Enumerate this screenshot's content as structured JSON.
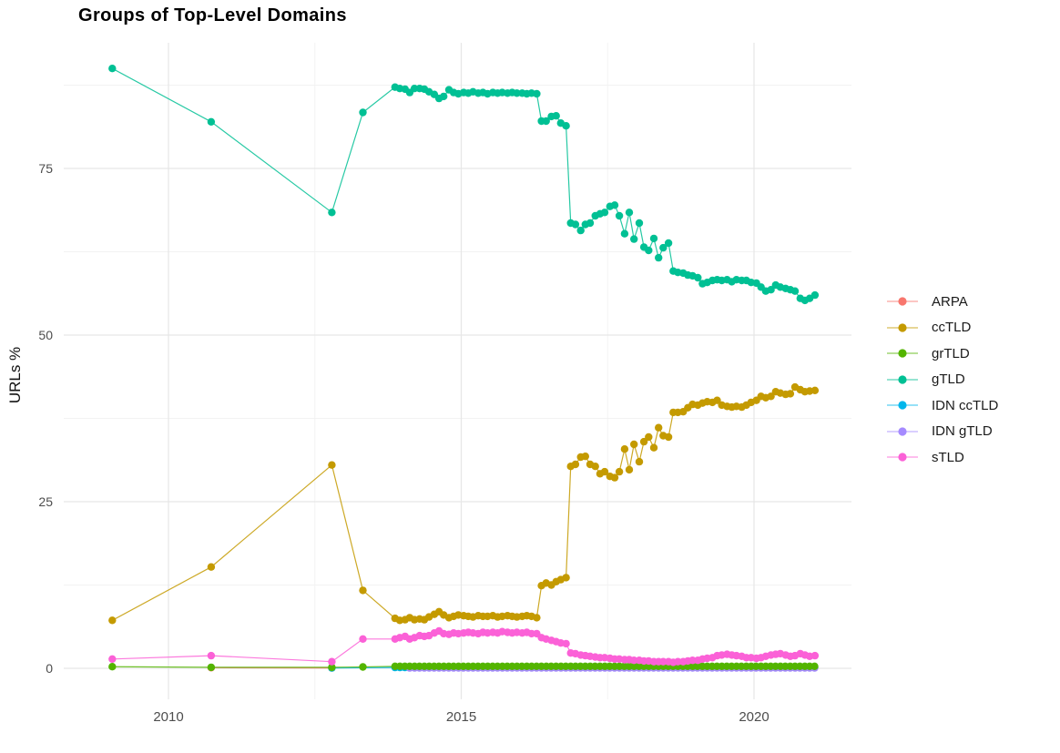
{
  "title": "Groups of Top-Level Domains",
  "chart_data": {
    "type": "line-scatter",
    "title": "Groups of Top-Level Domains",
    "xlabel": "",
    "ylabel": "URLs %",
    "x_ticks": [
      2010,
      2015,
      2020
    ],
    "x_tick_labels": [
      "2010",
      "2015",
      "2020"
    ],
    "x_minor_ticks": [
      2012.5,
      2017.5
    ],
    "y_ticks": [
      0,
      25,
      50,
      75
    ],
    "y_tick_labels": [
      "0",
      "25",
      "50",
      "75"
    ],
    "y_minor_ticks": [
      12.5,
      37.5,
      62.5,
      87.5
    ],
    "xlim": [
      2008.2,
      2021.7
    ],
    "ylim": [
      -4.6,
      93.9
    ],
    "grid": true,
    "legend_position": "right",
    "draw_order": [
      0,
      1,
      3,
      4,
      5,
      2,
      6
    ],
    "series": [
      {
        "name": "ARPA",
        "color": "#F8766D",
        "points": [
          [
            2010.73,
            0.1
          ],
          [
            2012.79,
            0.05
          ]
        ]
      },
      {
        "name": "ccTLD",
        "color": "#C49A00",
        "points": [
          [
            2009.04,
            7.2
          ],
          [
            2010.73,
            15.2
          ],
          [
            2012.79,
            30.5
          ],
          [
            2013.32,
            11.7
          ],
          [
            2013.87,
            7.5
          ],
          [
            2013.95,
            7.2
          ],
          [
            2014.04,
            7.3
          ],
          [
            2014.12,
            7.6
          ],
          [
            2014.2,
            7.3
          ],
          [
            2014.29,
            7.4
          ],
          [
            2014.37,
            7.3
          ],
          [
            2014.45,
            7.7
          ],
          [
            2014.54,
            8.1
          ],
          [
            2014.62,
            8.5
          ],
          [
            2014.7,
            8.0
          ],
          [
            2014.79,
            7.6
          ],
          [
            2014.87,
            7.8
          ],
          [
            2014.95,
            8.0
          ],
          [
            2015.04,
            7.9
          ],
          [
            2015.12,
            7.8
          ],
          [
            2015.2,
            7.7
          ],
          [
            2015.29,
            7.9
          ],
          [
            2015.37,
            7.8
          ],
          [
            2015.45,
            7.8
          ],
          [
            2015.54,
            7.9
          ],
          [
            2015.62,
            7.7
          ],
          [
            2015.7,
            7.8
          ],
          [
            2015.79,
            7.9
          ],
          [
            2015.87,
            7.8
          ],
          [
            2015.95,
            7.7
          ],
          [
            2016.04,
            7.8
          ],
          [
            2016.12,
            7.9
          ],
          [
            2016.2,
            7.8
          ],
          [
            2016.29,
            7.6
          ],
          [
            2016.37,
            12.4
          ],
          [
            2016.45,
            12.8
          ],
          [
            2016.54,
            12.5
          ],
          [
            2016.62,
            13.0
          ],
          [
            2016.7,
            13.3
          ],
          [
            2016.79,
            13.6
          ],
          [
            2016.87,
            30.3
          ],
          [
            2016.95,
            30.6
          ],
          [
            2017.04,
            31.7
          ],
          [
            2017.12,
            31.8
          ],
          [
            2017.2,
            30.6
          ],
          [
            2017.29,
            30.3
          ],
          [
            2017.37,
            29.2
          ],
          [
            2017.45,
            29.5
          ],
          [
            2017.54,
            28.8
          ],
          [
            2017.62,
            28.6
          ],
          [
            2017.7,
            29.5
          ],
          [
            2017.79,
            32.9
          ],
          [
            2017.87,
            29.8
          ],
          [
            2017.95,
            33.6
          ],
          [
            2018.04,
            31.0
          ],
          [
            2018.12,
            34.0
          ],
          [
            2018.2,
            34.7
          ],
          [
            2018.29,
            33.1
          ],
          [
            2018.37,
            36.1
          ],
          [
            2018.45,
            34.9
          ],
          [
            2018.54,
            34.7
          ],
          [
            2018.62,
            38.4
          ],
          [
            2018.7,
            38.4
          ],
          [
            2018.79,
            38.5
          ],
          [
            2018.87,
            39.1
          ],
          [
            2018.95,
            39.6
          ],
          [
            2019.04,
            39.5
          ],
          [
            2019.12,
            39.8
          ],
          [
            2019.2,
            40.0
          ],
          [
            2019.29,
            39.9
          ],
          [
            2019.37,
            40.2
          ],
          [
            2019.45,
            39.5
          ],
          [
            2019.54,
            39.3
          ],
          [
            2019.62,
            39.2
          ],
          [
            2019.7,
            39.3
          ],
          [
            2019.79,
            39.2
          ],
          [
            2019.87,
            39.5
          ],
          [
            2019.95,
            39.9
          ],
          [
            2020.04,
            40.2
          ],
          [
            2020.12,
            40.8
          ],
          [
            2020.2,
            40.6
          ],
          [
            2020.29,
            40.8
          ],
          [
            2020.37,
            41.5
          ],
          [
            2020.45,
            41.3
          ],
          [
            2020.54,
            41.1
          ],
          [
            2020.62,
            41.2
          ],
          [
            2020.7,
            42.2
          ],
          [
            2020.79,
            41.8
          ],
          [
            2020.87,
            41.5
          ],
          [
            2020.95,
            41.6
          ],
          [
            2021.04,
            41.7
          ]
        ]
      },
      {
        "name": "grTLD",
        "color": "#53B400",
        "points": [
          [
            2009.04,
            0.25
          ],
          [
            2010.73,
            0.15
          ],
          [
            2012.79,
            0.15
          ],
          [
            2013.32,
            0.2
          ]
        ],
        "run": {
          "x0": 2013.87,
          "dx": 0.0833,
          "n": 87,
          "value": 0.3
        }
      },
      {
        "name": "gTLD",
        "color": "#00C094",
        "points": [
          [
            2009.04,
            90.0
          ],
          [
            2010.73,
            82.0
          ],
          [
            2012.79,
            68.4
          ],
          [
            2013.32,
            83.4
          ],
          [
            2013.87,
            87.2
          ],
          [
            2013.95,
            87.0
          ],
          [
            2014.04,
            86.9
          ],
          [
            2014.12,
            86.4
          ],
          [
            2014.2,
            87.0
          ],
          [
            2014.29,
            87.0
          ],
          [
            2014.37,
            86.9
          ],
          [
            2014.45,
            86.5
          ],
          [
            2014.54,
            86.1
          ],
          [
            2014.62,
            85.5
          ],
          [
            2014.7,
            85.8
          ],
          [
            2014.79,
            86.8
          ],
          [
            2014.87,
            86.4
          ],
          [
            2014.95,
            86.2
          ],
          [
            2015.04,
            86.4
          ],
          [
            2015.12,
            86.3
          ],
          [
            2015.2,
            86.5
          ],
          [
            2015.29,
            86.3
          ],
          [
            2015.37,
            86.4
          ],
          [
            2015.45,
            86.2
          ],
          [
            2015.54,
            86.4
          ],
          [
            2015.62,
            86.3
          ],
          [
            2015.7,
            86.4
          ],
          [
            2015.79,
            86.3
          ],
          [
            2015.87,
            86.4
          ],
          [
            2015.95,
            86.3
          ],
          [
            2016.04,
            86.3
          ],
          [
            2016.12,
            86.2
          ],
          [
            2016.2,
            86.3
          ],
          [
            2016.29,
            86.2
          ],
          [
            2016.37,
            82.1
          ],
          [
            2016.45,
            82.1
          ],
          [
            2016.54,
            82.8
          ],
          [
            2016.62,
            82.9
          ],
          [
            2016.7,
            81.8
          ],
          [
            2016.79,
            81.4
          ],
          [
            2016.87,
            66.8
          ],
          [
            2016.95,
            66.6
          ],
          [
            2017.04,
            65.7
          ],
          [
            2017.12,
            66.6
          ],
          [
            2017.2,
            66.8
          ],
          [
            2017.29,
            67.9
          ],
          [
            2017.37,
            68.2
          ],
          [
            2017.45,
            68.4
          ],
          [
            2017.54,
            69.3
          ],
          [
            2017.62,
            69.5
          ],
          [
            2017.7,
            67.9
          ],
          [
            2017.79,
            65.2
          ],
          [
            2017.87,
            68.4
          ],
          [
            2017.95,
            64.4
          ],
          [
            2018.04,
            66.8
          ],
          [
            2018.12,
            63.2
          ],
          [
            2018.2,
            62.7
          ],
          [
            2018.29,
            64.5
          ],
          [
            2018.37,
            61.6
          ],
          [
            2018.45,
            63.1
          ],
          [
            2018.54,
            63.8
          ],
          [
            2018.62,
            59.6
          ],
          [
            2018.7,
            59.4
          ],
          [
            2018.79,
            59.3
          ],
          [
            2018.87,
            59.0
          ],
          [
            2018.95,
            58.9
          ],
          [
            2019.04,
            58.6
          ],
          [
            2019.12,
            57.7
          ],
          [
            2019.2,
            57.9
          ],
          [
            2019.29,
            58.2
          ],
          [
            2019.37,
            58.3
          ],
          [
            2019.45,
            58.2
          ],
          [
            2019.54,
            58.3
          ],
          [
            2019.62,
            58.0
          ],
          [
            2019.7,
            58.3
          ],
          [
            2019.79,
            58.2
          ],
          [
            2019.87,
            58.2
          ],
          [
            2019.95,
            57.9
          ],
          [
            2020.04,
            57.8
          ],
          [
            2020.12,
            57.2
          ],
          [
            2020.2,
            56.6
          ],
          [
            2020.29,
            56.8
          ],
          [
            2020.37,
            57.5
          ],
          [
            2020.45,
            57.2
          ],
          [
            2020.54,
            57.0
          ],
          [
            2020.62,
            56.8
          ],
          [
            2020.7,
            56.6
          ],
          [
            2020.79,
            55.5
          ],
          [
            2020.87,
            55.2
          ],
          [
            2020.95,
            55.5
          ],
          [
            2021.04,
            56.0
          ]
        ]
      },
      {
        "name": "IDN ccTLD",
        "color": "#00B6EB",
        "points": [
          [
            2012.79,
            0.05
          ]
        ],
        "run": {
          "x0": 2013.87,
          "dx": 0.0833,
          "n": 87,
          "value": 0.12
        }
      },
      {
        "name": "IDN gTLD",
        "color": "#A58AFF",
        "points": [],
        "run": {
          "x0": 2014.12,
          "dx": 0.0833,
          "n": 84,
          "value": 0.05
        }
      },
      {
        "name": "sTLD",
        "color": "#FB61D7",
        "points": [
          [
            2009.04,
            1.4
          ],
          [
            2010.73,
            1.9
          ],
          [
            2012.79,
            1.0
          ],
          [
            2013.32,
            4.4
          ],
          [
            2013.87,
            4.4
          ],
          [
            2013.95,
            4.6
          ],
          [
            2014.04,
            4.8
          ],
          [
            2014.12,
            4.4
          ],
          [
            2014.2,
            4.6
          ],
          [
            2014.29,
            4.9
          ],
          [
            2014.37,
            4.8
          ],
          [
            2014.45,
            4.9
          ],
          [
            2014.54,
            5.3
          ],
          [
            2014.62,
            5.6
          ],
          [
            2014.7,
            5.2
          ],
          [
            2014.79,
            5.1
          ],
          [
            2014.87,
            5.3
          ],
          [
            2014.95,
            5.2
          ],
          [
            2015.04,
            5.3
          ],
          [
            2015.12,
            5.4
          ],
          [
            2015.2,
            5.3
          ],
          [
            2015.29,
            5.2
          ],
          [
            2015.37,
            5.4
          ],
          [
            2015.45,
            5.3
          ],
          [
            2015.54,
            5.4
          ],
          [
            2015.62,
            5.3
          ],
          [
            2015.7,
            5.5
          ],
          [
            2015.79,
            5.4
          ],
          [
            2015.87,
            5.3
          ],
          [
            2015.95,
            5.4
          ],
          [
            2016.04,
            5.3
          ],
          [
            2016.12,
            5.4
          ],
          [
            2016.2,
            5.2
          ],
          [
            2016.29,
            5.2
          ],
          [
            2016.37,
            4.6
          ],
          [
            2016.45,
            4.4
          ],
          [
            2016.54,
            4.2
          ],
          [
            2016.62,
            4.0
          ],
          [
            2016.7,
            3.8
          ],
          [
            2016.79,
            3.7
          ],
          [
            2016.87,
            2.3
          ],
          [
            2016.95,
            2.2
          ],
          [
            2017.04,
            2.0
          ],
          [
            2017.12,
            1.9
          ],
          [
            2017.2,
            1.8
          ],
          [
            2017.29,
            1.7
          ],
          [
            2017.37,
            1.6
          ],
          [
            2017.45,
            1.6
          ],
          [
            2017.54,
            1.5
          ],
          [
            2017.62,
            1.4
          ],
          [
            2017.7,
            1.4
          ],
          [
            2017.79,
            1.3
          ],
          [
            2017.87,
            1.3
          ],
          [
            2017.95,
            1.2
          ],
          [
            2018.04,
            1.2
          ],
          [
            2018.12,
            1.1
          ],
          [
            2018.2,
            1.1
          ],
          [
            2018.29,
            1.0
          ],
          [
            2018.37,
            1.0
          ],
          [
            2018.45,
            1.0
          ],
          [
            2018.54,
            1.0
          ],
          [
            2018.62,
            0.9
          ],
          [
            2018.7,
            1.0
          ],
          [
            2018.79,
            1.0
          ],
          [
            2018.87,
            1.1
          ],
          [
            2018.95,
            1.2
          ],
          [
            2019.04,
            1.2
          ],
          [
            2019.12,
            1.4
          ],
          [
            2019.2,
            1.5
          ],
          [
            2019.29,
            1.6
          ],
          [
            2019.37,
            1.9
          ],
          [
            2019.45,
            2.0
          ],
          [
            2019.54,
            2.1
          ],
          [
            2019.62,
            2.0
          ],
          [
            2019.7,
            1.9
          ],
          [
            2019.79,
            1.8
          ],
          [
            2019.87,
            1.6
          ],
          [
            2019.95,
            1.6
          ],
          [
            2020.04,
            1.5
          ],
          [
            2020.12,
            1.6
          ],
          [
            2020.2,
            1.8
          ],
          [
            2020.29,
            2.0
          ],
          [
            2020.37,
            2.1
          ],
          [
            2020.45,
            2.2
          ],
          [
            2020.54,
            2.0
          ],
          [
            2020.62,
            1.8
          ],
          [
            2020.7,
            1.9
          ],
          [
            2020.79,
            2.2
          ],
          [
            2020.87,
            2.0
          ],
          [
            2020.95,
            1.8
          ],
          [
            2021.04,
            1.9
          ]
        ]
      }
    ]
  }
}
